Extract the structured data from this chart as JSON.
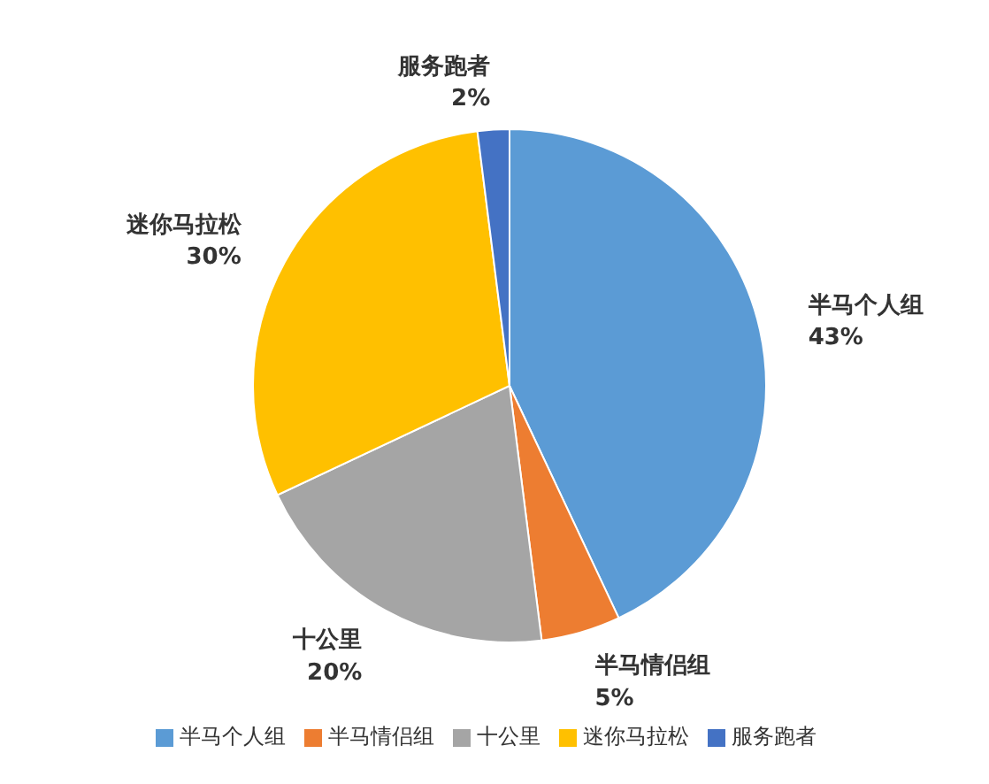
{
  "chart_data": {
    "type": "pie",
    "categories": [
      "半马个人组",
      "半马情侣组",
      "十公里",
      "迷你马拉松",
      "服务跑者"
    ],
    "values": [
      43,
      5,
      20,
      30,
      2
    ],
    "colors": [
      "#5b9bd5",
      "#ed7d31",
      "#a5a5a5",
      "#ffc000",
      "#4472c4"
    ],
    "value_labels": [
      "43%",
      "5%",
      "20%",
      "30%",
      "2%"
    ],
    "legend": "bottom"
  }
}
